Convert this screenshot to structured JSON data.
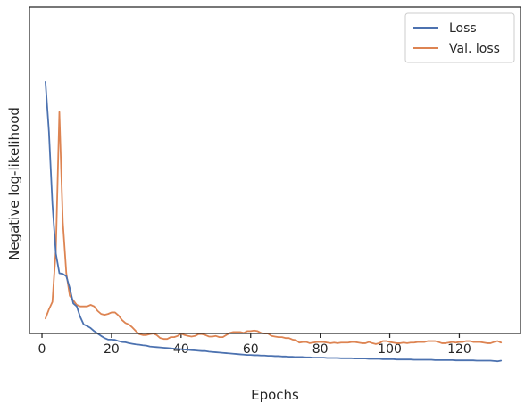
{
  "chart_data": {
    "type": "line",
    "title": "",
    "xlabel": "Epochs",
    "ylabel": "Negative log-likelihood",
    "xlim": [
      -3.6,
      137.6
    ],
    "ylim": [
      0,
      1
    ],
    "xticks": [
      0,
      20,
      40,
      60,
      80,
      100,
      120
    ],
    "yticks_visible": false,
    "grid": false,
    "legend_position": "top-right",
    "series": [
      {
        "name": "Loss",
        "color": "#4c72b0",
        "x": [
          1,
          2,
          3,
          4,
          5,
          6,
          7,
          8,
          9,
          10,
          11,
          12,
          13,
          14,
          15,
          16,
          17,
          18,
          19,
          20,
          21,
          22,
          23,
          24,
          25,
          26,
          27,
          28,
          29,
          30,
          31,
          32,
          33,
          34,
          35,
          36,
          37,
          38,
          39,
          40,
          41,
          42,
          43,
          44,
          45,
          46,
          47,
          48,
          49,
          50,
          51,
          52,
          53,
          54,
          55,
          56,
          57,
          58,
          59,
          60,
          61,
          62,
          63,
          64,
          65,
          66,
          67,
          68,
          69,
          70,
          71,
          72,
          73,
          74,
          75,
          76,
          77,
          78,
          79,
          80,
          81,
          82,
          83,
          84,
          85,
          86,
          87,
          88,
          89,
          90,
          91,
          92,
          93,
          94,
          95,
          96,
          97,
          98,
          99,
          100,
          101,
          102,
          103,
          104,
          105,
          106,
          107,
          108,
          109,
          110,
          111,
          112,
          113,
          114,
          115,
          116,
          117,
          118,
          119,
          120,
          121,
          122,
          123,
          124,
          125,
          126,
          127,
          128,
          129,
          130,
          131,
          132
        ],
        "y": [
          0.885,
          0.72,
          0.48,
          0.315,
          0.25,
          0.248,
          0.24,
          0.2,
          0.15,
          0.14,
          0.105,
          0.08,
          0.075,
          0.068,
          0.058,
          0.05,
          0.042,
          0.035,
          0.03,
          0.03,
          0.029,
          0.025,
          0.022,
          0.021,
          0.018,
          0.016,
          0.014,
          0.013,
          0.011,
          0.01,
          0.007,
          0.006,
          0.005,
          0.004,
          0.003,
          0.002,
          0.001,
          0.0,
          -0.001,
          -0.002,
          -0.003,
          -0.004,
          -0.005,
          -0.006,
          -0.007,
          -0.008,
          -0.008,
          -0.01,
          -0.011,
          -0.012,
          -0.013,
          -0.014,
          -0.015,
          -0.016,
          -0.017,
          -0.018,
          -0.019,
          -0.02,
          -0.021,
          -0.021,
          -0.022,
          -0.022,
          -0.023,
          -0.023,
          -0.024,
          -0.024,
          -0.025,
          -0.025,
          -0.026,
          -0.026,
          -0.027,
          -0.027,
          -0.028,
          -0.028,
          -0.028,
          -0.029,
          -0.029,
          -0.03,
          -0.03,
          -0.03,
          -0.03,
          -0.031,
          -0.031,
          -0.031,
          -0.031,
          -0.032,
          -0.032,
          -0.032,
          -0.032,
          -0.033,
          -0.033,
          -0.033,
          -0.033,
          -0.034,
          -0.034,
          -0.034,
          -0.034,
          -0.035,
          -0.035,
          -0.035,
          -0.035,
          -0.036,
          -0.036,
          -0.036,
          -0.036,
          -0.036,
          -0.037,
          -0.037,
          -0.037,
          -0.037,
          -0.037,
          -0.037,
          -0.038,
          -0.038,
          -0.038,
          -0.038,
          -0.038,
          -0.038,
          -0.039,
          -0.039,
          -0.039,
          -0.039,
          -0.039,
          -0.039,
          -0.04,
          -0.04,
          -0.04,
          -0.04,
          -0.04,
          -0.041,
          -0.042,
          -0.04
        ]
      },
      {
        "name": "Val. loss",
        "color": "#dd8452",
        "x": [
          1,
          2,
          3,
          4,
          5,
          6,
          7,
          8,
          9,
          10,
          11,
          12,
          13,
          14,
          15,
          16,
          17,
          18,
          19,
          20,
          21,
          22,
          23,
          24,
          25,
          26,
          27,
          28,
          29,
          30,
          31,
          32,
          33,
          34,
          35,
          36,
          37,
          38,
          39,
          40,
          41,
          42,
          43,
          44,
          45,
          46,
          47,
          48,
          49,
          50,
          51,
          52,
          53,
          54,
          55,
          56,
          57,
          58,
          59,
          60,
          61,
          62,
          63,
          64,
          65,
          66,
          67,
          68,
          69,
          70,
          71,
          72,
          73,
          74,
          75,
          76,
          77,
          78,
          79,
          80,
          81,
          82,
          83,
          84,
          85,
          86,
          87,
          88,
          89,
          90,
          91,
          92,
          93,
          94,
          95,
          96,
          97,
          98,
          99,
          100,
          101,
          102,
          103,
          104,
          105,
          106,
          107,
          108,
          109,
          110,
          111,
          112,
          113,
          114,
          115,
          116,
          117,
          118,
          119,
          120,
          121,
          122,
          123,
          124,
          125,
          126,
          127,
          128,
          129,
          130,
          131,
          132
        ],
        "y": [
          0.1,
          0.13,
          0.155,
          0.33,
          0.785,
          0.42,
          0.25,
          0.175,
          0.16,
          0.145,
          0.14,
          0.14,
          0.14,
          0.145,
          0.14,
          0.125,
          0.115,
          0.112,
          0.115,
          0.12,
          0.12,
          0.11,
          0.095,
          0.085,
          0.08,
          0.07,
          0.058,
          0.048,
          0.045,
          0.045,
          0.048,
          0.05,
          0.045,
          0.035,
          0.032,
          0.032,
          0.038,
          0.038,
          0.042,
          0.05,
          0.045,
          0.042,
          0.04,
          0.042,
          0.048,
          0.048,
          0.045,
          0.04,
          0.04,
          0.042,
          0.038,
          0.038,
          0.045,
          0.052,
          0.055,
          0.055,
          0.055,
          0.052,
          0.058,
          0.058,
          0.06,
          0.058,
          0.052,
          0.05,
          0.05,
          0.042,
          0.04,
          0.038,
          0.038,
          0.035,
          0.035,
          0.03,
          0.028,
          0.02,
          0.022,
          0.022,
          0.018,
          0.02,
          0.022,
          0.022,
          0.022,
          0.02,
          0.018,
          0.02,
          0.018,
          0.02,
          0.02,
          0.02,
          0.022,
          0.022,
          0.02,
          0.018,
          0.018,
          0.022,
          0.018,
          0.015,
          0.018,
          0.025,
          0.025,
          0.022,
          0.02,
          0.018,
          0.018,
          0.02,
          0.018,
          0.02,
          0.02,
          0.022,
          0.022,
          0.022,
          0.025,
          0.025,
          0.025,
          0.022,
          0.018,
          0.018,
          0.02,
          0.022,
          0.02,
          0.022,
          0.022,
          0.025,
          0.025,
          0.022,
          0.022,
          0.022,
          0.02,
          0.018,
          0.018,
          0.022,
          0.025,
          0.02
        ]
      }
    ]
  }
}
